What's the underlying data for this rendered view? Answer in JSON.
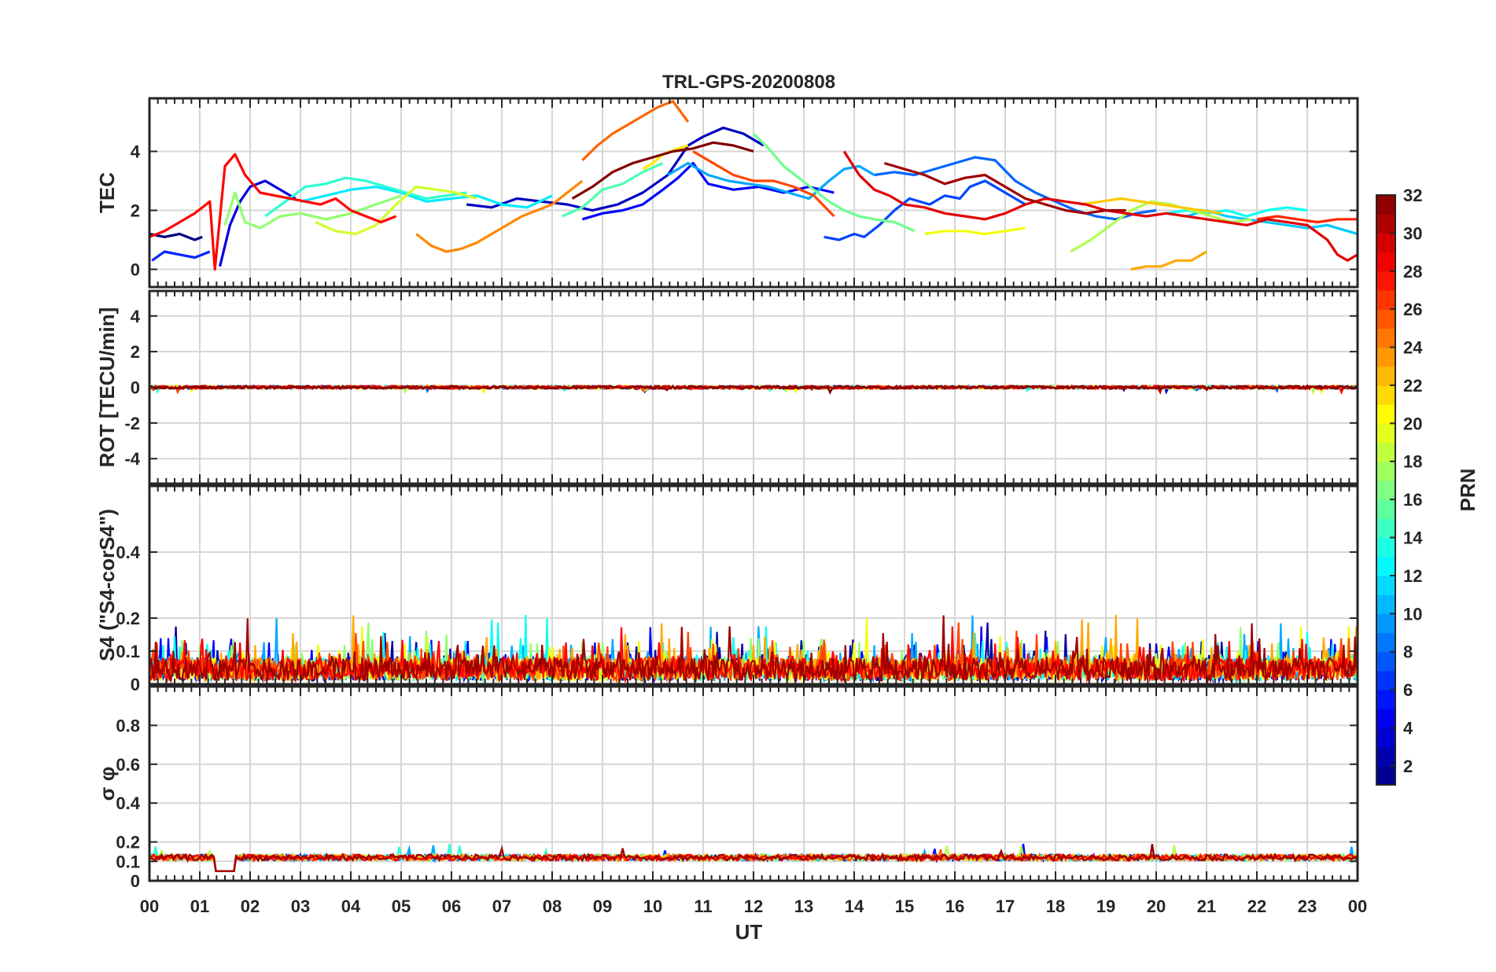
{
  "chart_data": {
    "type": "line",
    "title": "TRL-GPS-20200808",
    "xlabel": "UT",
    "x_ticks": [
      "00",
      "01",
      "02",
      "03",
      "04",
      "05",
      "06",
      "07",
      "08",
      "09",
      "10",
      "11",
      "12",
      "13",
      "14",
      "15",
      "16",
      "17",
      "18",
      "19",
      "20",
      "21",
      "22",
      "23",
      "00"
    ],
    "xlim": [
      0,
      24
    ],
    "grid": true,
    "colorbar": {
      "label": "PRN",
      "range": [
        1,
        32
      ],
      "ticks": [
        "2",
        "4",
        "6",
        "8",
        "10",
        "12",
        "14",
        "16",
        "18",
        "20",
        "22",
        "24",
        "26",
        "28",
        "30",
        "32"
      ],
      "colormap": "jet",
      "colors": [
        "#00008f",
        "#0000ff",
        "#0080ff",
        "#00ffff",
        "#80ff80",
        "#ffff00",
        "#ff8000",
        "#ff0000",
        "#800000"
      ]
    },
    "panels": [
      {
        "name": "tec",
        "ylabel": "TEC",
        "ylim": [
          -0.6,
          5.8
        ],
        "yticks": [
          0,
          2,
          4
        ],
        "ytick_labels": [
          "0",
          "2",
          "4"
        ],
        "series": [
          {
            "prn": 1,
            "x": [
              0.0,
              0.3,
              0.6,
              0.9,
              1.05
            ],
            "y": [
              1.2,
              1.1,
              1.2,
              1.0,
              1.1
            ]
          },
          {
            "prn": 3,
            "x": [
              6.3,
              6.8,
              7.3,
              7.8,
              8.3,
              8.8,
              9.3,
              9.8,
              10.3,
              10.7,
              11.0,
              11.4,
              11.8,
              12.2
            ],
            "y": [
              2.2,
              2.1,
              2.4,
              2.3,
              2.2,
              2.0,
              2.2,
              2.6,
              3.2,
              4.2,
              4.5,
              4.8,
              4.6,
              4.2
            ]
          },
          {
            "prn": 4,
            "x": [
              1.4,
              1.6,
              1.8,
              2.0,
              2.3,
              2.6,
              2.9
            ],
            "y": [
              0.1,
              1.5,
              2.3,
              2.8,
              3.0,
              2.7,
              2.4
            ]
          },
          {
            "prn": 5,
            "x": [
              8.6,
              9.0,
              9.4,
              9.8,
              10.2,
              10.5,
              10.8,
              11.1,
              11.6,
              12.1,
              12.6,
              13.1,
              13.6
            ],
            "y": [
              1.7,
              1.9,
              2.0,
              2.2,
              2.7,
              3.1,
              3.6,
              2.9,
              2.7,
              2.8,
              2.6,
              2.8,
              2.6
            ]
          },
          {
            "prn": 6,
            "x": [
              0.05,
              0.3,
              0.6,
              0.9,
              1.2
            ],
            "y": [
              0.3,
              0.6,
              0.5,
              0.4,
              0.6
            ]
          },
          {
            "prn": 7,
            "x": [
              13.4,
              13.7,
              14.0,
              14.2,
              14.5,
              14.8,
              15.1,
              15.5,
              15.8,
              16.1,
              16.3,
              16.6,
              17.0,
              17.4
            ],
            "y": [
              1.1,
              1.0,
              1.2,
              1.1,
              1.5,
              2.0,
              2.4,
              2.2,
              2.5,
              2.4,
              2.8,
              3.0,
              2.6,
              2.2
            ]
          },
          {
            "prn": 8,
            "x": [
              14.4,
              14.8,
              15.2,
              15.6,
              16.0,
              16.4,
              16.8,
              17.2,
              17.6,
              18.0,
              18.4,
              18.8,
              19.2,
              19.6,
              20.0
            ],
            "y": [
              3.2,
              3.3,
              3.2,
              3.4,
              3.6,
              3.8,
              3.7,
              3.0,
              2.6,
              2.3,
              2.0,
              1.8,
              1.7,
              1.9,
              2.0
            ]
          },
          {
            "prn": 10,
            "x": [
              10.3,
              10.7,
              11.1,
              11.5,
              11.9,
              12.3,
              12.7,
              13.1,
              13.5,
              13.8,
              14.1,
              14.4
            ],
            "y": [
              3.2,
              3.6,
              3.2,
              3.0,
              2.9,
              2.8,
              2.6,
              2.4,
              3.0,
              3.4,
              3.5,
              3.2
            ]
          },
          {
            "prn": 11,
            "x": [
              20.6,
              21.0,
              21.4,
              21.8,
              22.2,
              22.6,
              23.0,
              23.4,
              23.8,
              24.0
            ],
            "y": [
              1.8,
              2.0,
              1.8,
              1.7,
              1.6,
              1.5,
              1.4,
              1.5,
              1.3,
              1.2
            ]
          },
          {
            "prn": 12,
            "x": [
              3.0,
              3.5,
              4.0,
              4.5,
              5.0,
              5.5,
              6.0,
              6.5,
              7.0,
              7.5,
              8.0
            ],
            "y": [
              2.3,
              2.5,
              2.7,
              2.8,
              2.6,
              2.3,
              2.4,
              2.5,
              2.2,
              2.1,
              2.5
            ]
          },
          {
            "prn": 13,
            "x": [
              19.8,
              20.2,
              20.6,
              21.0,
              21.4,
              21.8,
              22.2,
              22.6,
              23.0
            ],
            "y": [
              1.8,
              1.9,
              2.0,
              1.9,
              2.0,
              1.8,
              2.0,
              2.1,
              2.0
            ]
          },
          {
            "prn": 14,
            "x": [
              2.3,
              2.7,
              3.1,
              3.5,
              3.9,
              4.3,
              4.7,
              5.1,
              5.5,
              5.9,
              6.3
            ],
            "y": [
              1.8,
              2.3,
              2.8,
              2.9,
              3.1,
              3.0,
              2.8,
              2.6,
              2.4,
              2.5,
              2.6
            ]
          },
          {
            "prn": 15,
            "x": [
              8.2,
              8.6,
              9.0,
              9.4,
              9.8,
              10.2
            ],
            "y": [
              1.8,
              2.1,
              2.7,
              2.9,
              3.3,
              3.6
            ]
          },
          {
            "prn": 16,
            "x": [
              12.0,
              12.3,
              12.6,
              12.9,
              13.2,
              13.5,
              13.8,
              14.1,
              14.4,
              14.8,
              15.2
            ],
            "y": [
              4.6,
              4.1,
              3.5,
              3.1,
              2.7,
              2.3,
              2.0,
              1.8,
              1.7,
              1.6,
              1.3
            ]
          },
          {
            "prn": 17,
            "x": [
              1.5,
              1.7,
              1.9,
              2.2,
              2.6,
              3.0,
              3.5,
              4.0,
              4.5,
              5.0
            ],
            "y": [
              1.5,
              2.6,
              1.6,
              1.4,
              1.8,
              1.9,
              1.7,
              1.9,
              2.2,
              2.5
            ]
          },
          {
            "prn": 18,
            "x": [
              18.3,
              18.7,
              19.1,
              19.5,
              19.9,
              20.3,
              20.7,
              21.1,
              21.5,
              21.9
            ],
            "y": [
              0.6,
              1.0,
              1.5,
              2.0,
              2.3,
              2.2,
              2.0,
              1.8,
              1.6,
              1.7
            ]
          },
          {
            "prn": 19,
            "x": [
              3.3,
              3.7,
              4.1,
              4.5,
              4.9,
              5.3,
              5.7,
              6.1,
              6.5
            ],
            "y": [
              1.6,
              1.3,
              1.2,
              1.5,
              2.2,
              2.8,
              2.7,
              2.6,
              2.4
            ]
          },
          {
            "prn": 20,
            "x": [
              15.4,
              15.8,
              16.2,
              16.6,
              17.0,
              17.4
            ],
            "y": [
              1.2,
              1.3,
              1.3,
              1.2,
              1.3,
              1.4
            ]
          },
          {
            "prn": 21,
            "x": [
              9.8,
              10.0,
              10.2,
              10.5,
              10.7
            ],
            "y": [
              3.4,
              3.6,
              3.9,
              4.1,
              4.2
            ]
          },
          {
            "prn": 22,
            "x": [
              18.5,
              18.9,
              19.3,
              19.7,
              20.1,
              20.5,
              20.9,
              21.3
            ],
            "y": [
              2.2,
              2.3,
              2.4,
              2.3,
              2.2,
              2.1,
              2.0,
              1.9
            ]
          },
          {
            "prn": 23,
            "x": [
              19.5,
              19.8,
              20.1,
              20.4,
              20.7,
              21.0
            ],
            "y": [
              0.0,
              0.1,
              0.1,
              0.3,
              0.3,
              0.6
            ]
          },
          {
            "prn": 24,
            "x": [
              5.3,
              5.6,
              5.9,
              6.2,
              6.5,
              6.8,
              7.1,
              7.4,
              7.7,
              8.0,
              8.3,
              8.6
            ],
            "y": [
              1.2,
              0.8,
              0.6,
              0.7,
              0.9,
              1.2,
              1.5,
              1.8,
              2.0,
              2.2,
              2.6,
              3.0
            ]
          },
          {
            "prn": 25,
            "x": [
              8.6,
              8.9,
              9.2,
              9.5,
              9.8,
              10.1,
              10.4,
              10.7
            ],
            "y": [
              3.7,
              4.2,
              4.6,
              4.9,
              5.2,
              5.5,
              5.7,
              5.0
            ]
          },
          {
            "prn": 26,
            "x": [
              10.8,
              11.2,
              11.6,
              12.0,
              12.4,
              12.8,
              13.2,
              13.6
            ],
            "y": [
              4.0,
              3.6,
              3.2,
              3.0,
              3.0,
              2.8,
              2.5,
              1.8
            ]
          },
          {
            "prn": 27,
            "x": [
              22.0,
              22.4,
              22.8,
              23.2,
              23.6,
              24.0
            ],
            "y": [
              1.7,
              1.8,
              1.7,
              1.6,
              1.7,
              1.7
            ]
          },
          {
            "prn": 28,
            "x": [
              0.0,
              0.3,
              0.6,
              0.9,
              1.2,
              1.3,
              1.5,
              1.7,
              1.9,
              2.2,
              2.5,
              2.8,
              3.1,
              3.4,
              3.7,
              4.0,
              4.3,
              4.6,
              4.9
            ],
            "y": [
              1.1,
              1.3,
              1.6,
              1.9,
              2.3,
              0.0,
              3.5,
              3.9,
              3.2,
              2.6,
              2.5,
              2.4,
              2.3,
              2.2,
              2.4,
              2.0,
              1.8,
              1.6,
              1.8
            ]
          },
          {
            "prn": 29,
            "x": [
              13.8,
              14.1,
              14.4,
              14.7,
              15.0,
              15.4,
              15.8,
              16.2,
              16.6,
              17.0,
              17.4,
              17.8,
              18.2,
              18.6,
              19.0,
              19.4,
              19.8,
              20.2,
              20.6,
              21.0,
              21.4,
              21.8,
              22.2,
              22.6,
              23.0,
              23.4,
              23.6,
              23.8,
              24.0
            ],
            "y": [
              4.0,
              3.2,
              2.7,
              2.5,
              2.2,
              2.1,
              1.9,
              1.8,
              1.7,
              1.9,
              2.2,
              2.4,
              2.3,
              2.2,
              2.0,
              1.9,
              1.8,
              1.9,
              1.8,
              1.7,
              1.6,
              1.5,
              1.7,
              1.6,
              1.5,
              1.0,
              0.5,
              0.3,
              0.5
            ]
          },
          {
            "prn": 31,
            "x": [
              14.6,
              15.0,
              15.4,
              15.8,
              16.2,
              16.6,
              17.0,
              17.4,
              17.8,
              18.2,
              18.6,
              19.0,
              19.4
            ],
            "y": [
              3.6,
              3.4,
              3.2,
              2.9,
              3.1,
              3.2,
              2.8,
              2.4,
              2.2,
              2.0,
              1.9,
              2.0,
              2.0
            ]
          },
          {
            "prn": 32,
            "x": [
              8.4,
              8.8,
              9.2,
              9.6,
              10.0,
              10.4,
              10.8,
              11.2,
              11.6,
              12.0
            ],
            "y": [
              2.4,
              2.8,
              3.3,
              3.6,
              3.8,
              4.0,
              4.1,
              4.3,
              4.2,
              4.0
            ]
          }
        ]
      },
      {
        "name": "rot",
        "ylabel": "ROT [TECU/min]",
        "ylim": [
          -5.4,
          5.4
        ],
        "yticks": [
          -4,
          -2,
          0,
          2,
          4
        ],
        "ytick_labels": [
          "-4",
          "-2",
          "0",
          "2",
          "4"
        ],
        "band": {
          "center": 0,
          "half_width": 0.1,
          "min_spike": -0.3,
          "max_spike": 0.2
        }
      },
      {
        "name": "s4",
        "ylabel": "S4 (\"S4-corS4\")",
        "ylim": [
          0,
          0.6
        ],
        "yticks": [
          0,
          0.1,
          0.2,
          0.4
        ],
        "ytick_labels": [
          "0",
          "0.1",
          "0.2",
          "0.4"
        ],
        "band": {
          "baseline": 0.05,
          "typical_max": 0.15,
          "peak": 0.21
        }
      },
      {
        "name": "sigma_phi",
        "ylabel": "σ φ",
        "ylim": [
          0,
          1
        ],
        "yticks": [
          0,
          0.1,
          0.2,
          0.4,
          0.6,
          0.8
        ],
        "ytick_labels": [
          "0",
          "0.1",
          "0.2",
          "0.4",
          "0.6",
          "0.8"
        ],
        "band": {
          "baseline": 0.12,
          "dip": [
            1.3,
            1.7,
            0.05
          ],
          "max": 0.19
        }
      }
    ]
  }
}
